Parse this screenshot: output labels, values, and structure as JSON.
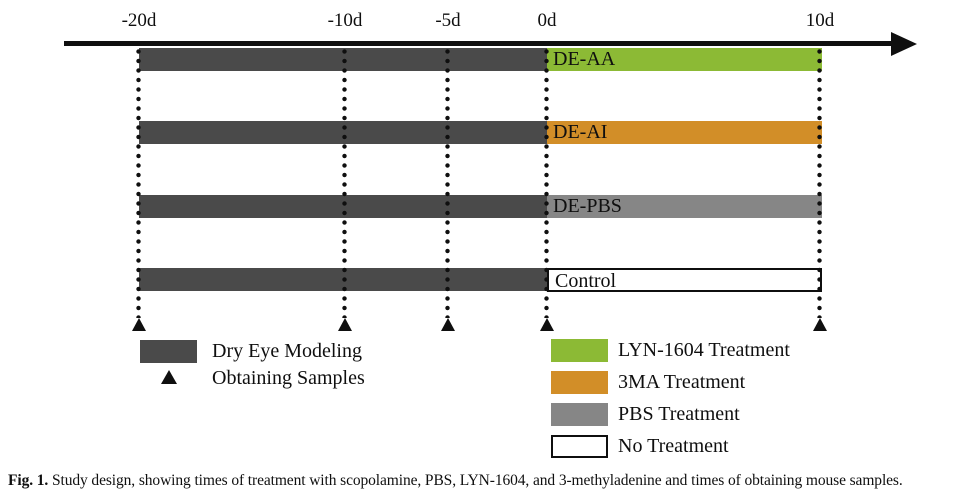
{
  "timeline": {
    "ticks": [
      {
        "label": "-20d"
      },
      {
        "label": "-10d"
      },
      {
        "label": "-5d"
      },
      {
        "label": "0d"
      },
      {
        "label": "10d"
      }
    ]
  },
  "rows": [
    {
      "label": "DE-AA",
      "treatment_color": "#8cba35"
    },
    {
      "label": "DE-AI",
      "treatment_color": "#d28e28"
    },
    {
      "label": "DE-PBS",
      "treatment_color": "#868686"
    },
    {
      "label": "Control",
      "treatment_color": "#ffffff"
    }
  ],
  "colors": {
    "dry_eye_modeling": "#4a4a4a",
    "lyn_1604": "#8cba35",
    "three_ma": "#d28e28",
    "pbs": "#868686",
    "no_treatment": "#ffffff",
    "line": "#0f0f0f"
  },
  "legend_left": [
    {
      "label": "Dry Eye Modeling"
    },
    {
      "label": "Obtaining Samples"
    }
  ],
  "legend_right": [
    {
      "label": "LYN-1604 Treatment",
      "color": "#8cba35"
    },
    {
      "label": "3MA Treatment",
      "color": "#d28e28"
    },
    {
      "label": "PBS Treatment",
      "color": "#868686"
    },
    {
      "label": "No Treatment",
      "color": "#ffffff"
    }
  ],
  "caption": {
    "prefix": "Fig. 1.",
    "text": "Study design, showing times of treatment with scopolamine, PBS, LYN-1604, and 3-methyladenine and times of obtaining mouse samples."
  }
}
